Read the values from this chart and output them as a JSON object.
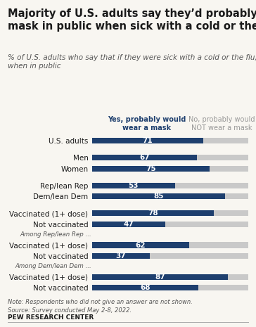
{
  "title": "Majority of U.S. adults say they’d probably wear a\nmask in public when sick with a cold or the flu",
  "subtitle": "% of U.S. adults who say that if they were sick with a cold or the flu, they —\nwhen in public",
  "categories": [
    "U.S. adults",
    "Men",
    "Women",
    "Rep/lean Rep",
    "Dem/lean Dem",
    "Vaccinated (1+ dose)",
    "Not vaccinated",
    "Vaccinated (1+ dose)",
    "Not vaccinated",
    "Vaccinated (1+ dose)",
    "Not vaccinated"
  ],
  "yes_values": [
    71,
    67,
    75,
    53,
    85,
    78,
    47,
    62,
    37,
    87,
    68
  ],
  "no_values": [
    29,
    33,
    25,
    47,
    15,
    22,
    53,
    38,
    63,
    13,
    32
  ],
  "bar_color_yes": "#1e3f6e",
  "bar_color_no": "#c9c9c9",
  "label_yes": "Yes, probably would\nwear a mask",
  "label_no": "No, probably would\nNOT wear a mask",
  "group_label_1": "Among Rep/lean Rep ...",
  "group_label_2": "Among Dem/lean Dem ...",
  "note": "Note: Respondents who did not give an answer are not shown.\nSource: Survey conducted May 2-8, 2022.",
  "source_label": "PEW RESEARCH CENTER",
  "background_color": "#f8f6f1",
  "text_color": "#1a1a1a",
  "title_fontsize": 10.5,
  "subtitle_fontsize": 7.5,
  "bar_label_fontsize": 7.5,
  "cat_label_fontsize": 7.5,
  "legend_fontsize": 7,
  "note_fontsize": 6,
  "source_fontsize": 6.5
}
